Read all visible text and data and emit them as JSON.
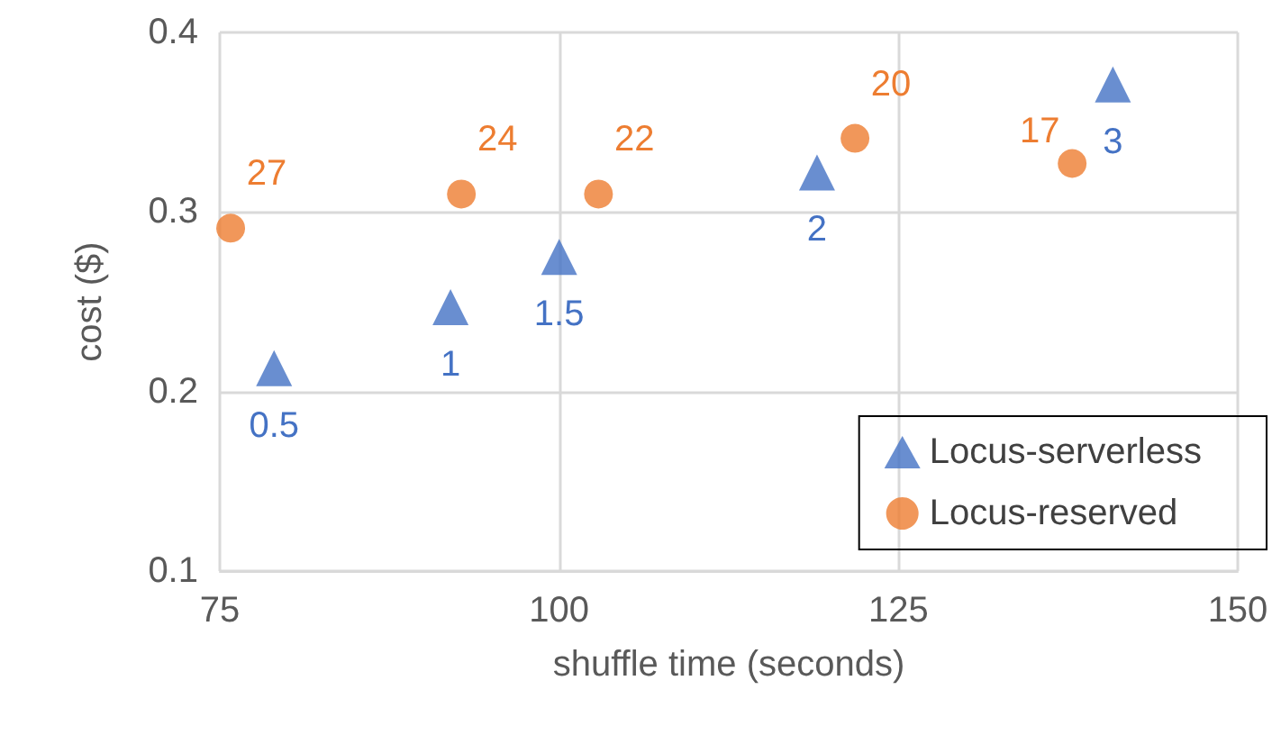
{
  "chart_data": {
    "type": "scatter",
    "xlabel": "shuffle time (seconds)",
    "ylabel": "cost ($)",
    "xlim": [
      75,
      150
    ],
    "xticks": [
      75,
      100,
      125,
      150
    ],
    "ylim": [
      0.1,
      0.4
    ],
    "yticks": [
      0.1,
      0.2,
      0.3,
      0.4
    ],
    "grid": true,
    "legend": "bottom right",
    "series": [
      {
        "name": "Locus-serverless",
        "color": "#4472c4",
        "marker": "triangle",
        "x": [
          79.0,
          92.0,
          100.0,
          119.0,
          140.8
        ],
        "values": [
          0.213,
          0.247,
          0.275,
          0.322,
          0.371
        ]
      },
      {
        "name": "Locus-reserved",
        "color": "#ed7d31",
        "marker": "circle",
        "x": [
          75.8,
          92.8,
          102.9,
          121.8,
          137.8
        ],
        "values": [
          0.291,
          0.31,
          0.31,
          0.341,
          0.327
        ]
      }
    ],
    "annotations": [
      {
        "text": "0.5",
        "x": 79.0,
        "y": 0.213
      },
      {
        "text": "1",
        "x": 92.0,
        "y": 0.247
      },
      {
        "text": "1.5",
        "x": 100.0,
        "y": 0.275
      },
      {
        "text": "2",
        "x": 119.0,
        "y": 0.322
      },
      {
        "text": "3",
        "x": 140.8,
        "y": 0.371
      },
      {
        "text": "27",
        "x": 75.8,
        "y": 0.291
      },
      {
        "text": "24",
        "x": 92.8,
        "y": 0.31
      },
      {
        "text": "22",
        "x": 102.9,
        "y": 0.31
      },
      {
        "text": "20",
        "x": 121.8,
        "y": 0.341
      },
      {
        "text": "17",
        "x": 137.8,
        "y": 0.327
      }
    ]
  }
}
